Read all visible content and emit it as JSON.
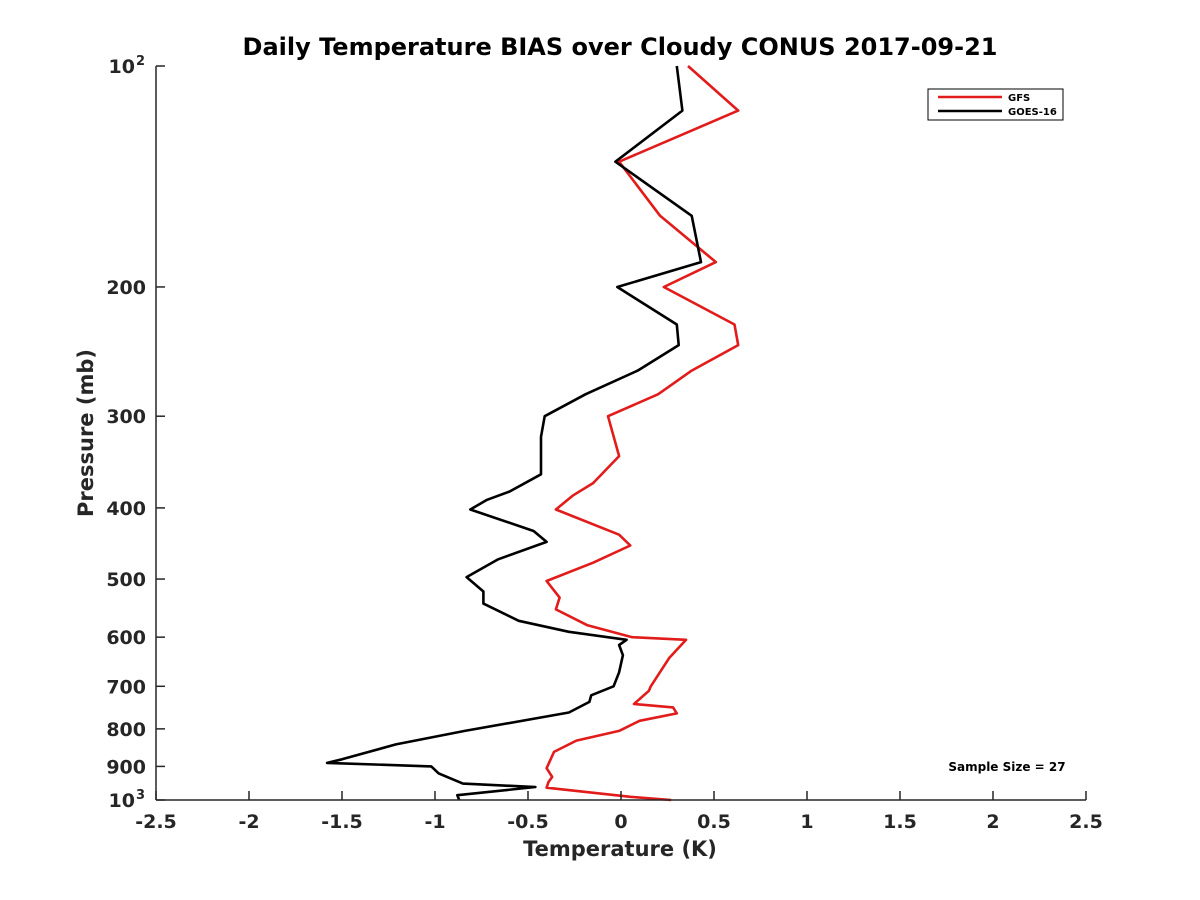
{
  "chart_data": {
    "type": "line",
    "title": "Daily Temperature BIAS over Cloudy CONUS 2017-09-21",
    "xlabel": "Temperature (K)",
    "ylabel": "Pressure (mb)",
    "xlim": [
      -2.5,
      2.5
    ],
    "ylim": [
      1000,
      100
    ],
    "yscale": "log",
    "x_ticks": [
      -2.5,
      -2,
      -1.5,
      -1,
      -0.5,
      0,
      0.5,
      1,
      1.5,
      2,
      2.5
    ],
    "x_tick_labels": [
      "-2.5",
      "-2",
      "-1.5",
      "-1",
      "-0.5",
      "0",
      "0.5",
      "1",
      "1.5",
      "2",
      "2.5"
    ],
    "y_ticks": [
      {
        "value": 100,
        "base": "10",
        "sup": "2"
      },
      {
        "value": 200,
        "label": "200"
      },
      {
        "value": 300,
        "label": "300"
      },
      {
        "value": 400,
        "label": "400"
      },
      {
        "value": 500,
        "label": "500"
      },
      {
        "value": 600,
        "label": "600"
      },
      {
        "value": 700,
        "label": "700"
      },
      {
        "value": 800,
        "label": "800"
      },
      {
        "value": 900,
        "label": "900"
      },
      {
        "value": 1000,
        "base": "10",
        "sup": "3"
      }
    ],
    "grid": false,
    "legend_position": "top-right",
    "annotation": "Sample Size = 27",
    "series": [
      {
        "name": "GFS",
        "color": "#e21b1b",
        "points": [
          [
            0.36,
            100
          ],
          [
            0.63,
            115
          ],
          [
            -0.01,
            135
          ],
          [
            0.21,
            160
          ],
          [
            0.51,
            185
          ],
          [
            0.23,
            200
          ],
          [
            0.61,
            225
          ],
          [
            0.63,
            240
          ],
          [
            0.38,
            260
          ],
          [
            0.2,
            280
          ],
          [
            -0.07,
            300
          ],
          [
            -0.01,
            340
          ],
          [
            -0.15,
            370
          ],
          [
            -0.26,
            385
          ],
          [
            -0.35,
            402
          ],
          [
            -0.01,
            435
          ],
          [
            0.05,
            450
          ],
          [
            -0.15,
            475
          ],
          [
            -0.4,
            503
          ],
          [
            -0.33,
            530
          ],
          [
            -0.35,
            550
          ],
          [
            -0.18,
            578
          ],
          [
            0.06,
            600
          ],
          [
            0.35,
            605
          ],
          [
            0.26,
            640
          ],
          [
            0.16,
            700
          ],
          [
            0.15,
            710
          ],
          [
            0.07,
            740
          ],
          [
            0.28,
            748
          ],
          [
            0.3,
            762
          ],
          [
            0.1,
            780
          ],
          [
            -0.01,
            805
          ],
          [
            -0.24,
            830
          ],
          [
            -0.36,
            860
          ],
          [
            -0.4,
            905
          ],
          [
            -0.37,
            930
          ],
          [
            -0.39,
            945
          ],
          [
            -0.4,
            962
          ],
          [
            0.05,
            990
          ],
          [
            0.27,
            1000
          ]
        ]
      },
      {
        "name": "GOES-16",
        "color": "#000000",
        "points": [
          [
            0.3,
            100
          ],
          [
            0.33,
            115
          ],
          [
            -0.03,
            135
          ],
          [
            0.38,
            160
          ],
          [
            0.43,
            185
          ],
          [
            -0.02,
            200
          ],
          [
            0.3,
            225
          ],
          [
            0.31,
            240
          ],
          [
            0.09,
            260
          ],
          [
            -0.19,
            280
          ],
          [
            -0.41,
            300
          ],
          [
            -0.43,
            320
          ],
          [
            -0.43,
            360
          ],
          [
            -0.6,
            380
          ],
          [
            -0.72,
            390
          ],
          [
            -0.81,
            402
          ],
          [
            -0.47,
            430
          ],
          [
            -0.4,
            445
          ],
          [
            -0.66,
            470
          ],
          [
            -0.83,
            497
          ],
          [
            -0.74,
            520
          ],
          [
            -0.74,
            540
          ],
          [
            -0.55,
            570
          ],
          [
            -0.28,
            590
          ],
          [
            0.03,
            605
          ],
          [
            -0.01,
            615
          ],
          [
            0.01,
            635
          ],
          [
            -0.01,
            670
          ],
          [
            -0.04,
            700
          ],
          [
            -0.16,
            720
          ],
          [
            -0.17,
            735
          ],
          [
            -0.28,
            760
          ],
          [
            -0.84,
            805
          ],
          [
            -1.21,
            840
          ],
          [
            -1.5,
            880
          ],
          [
            -1.58,
            890
          ],
          [
            -1.02,
            900
          ],
          [
            -0.98,
            920
          ],
          [
            -0.85,
            950
          ],
          [
            -0.46,
            960
          ],
          [
            -0.88,
            985
          ],
          [
            -0.87,
            1000
          ]
        ]
      }
    ]
  }
}
